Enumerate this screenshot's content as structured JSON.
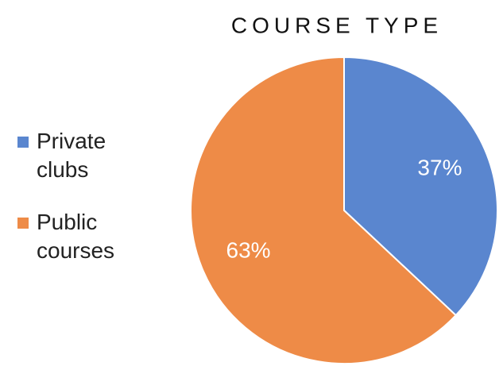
{
  "chart_data": {
    "type": "pie",
    "title": "COURSE TYPE",
    "categories": [
      "Private clubs",
      "Public courses"
    ],
    "values": [
      37,
      63
    ],
    "value_labels": [
      "37%",
      "63%"
    ],
    "colors": [
      "#5a86cf",
      "#ee8b47"
    ],
    "legend": "left"
  }
}
